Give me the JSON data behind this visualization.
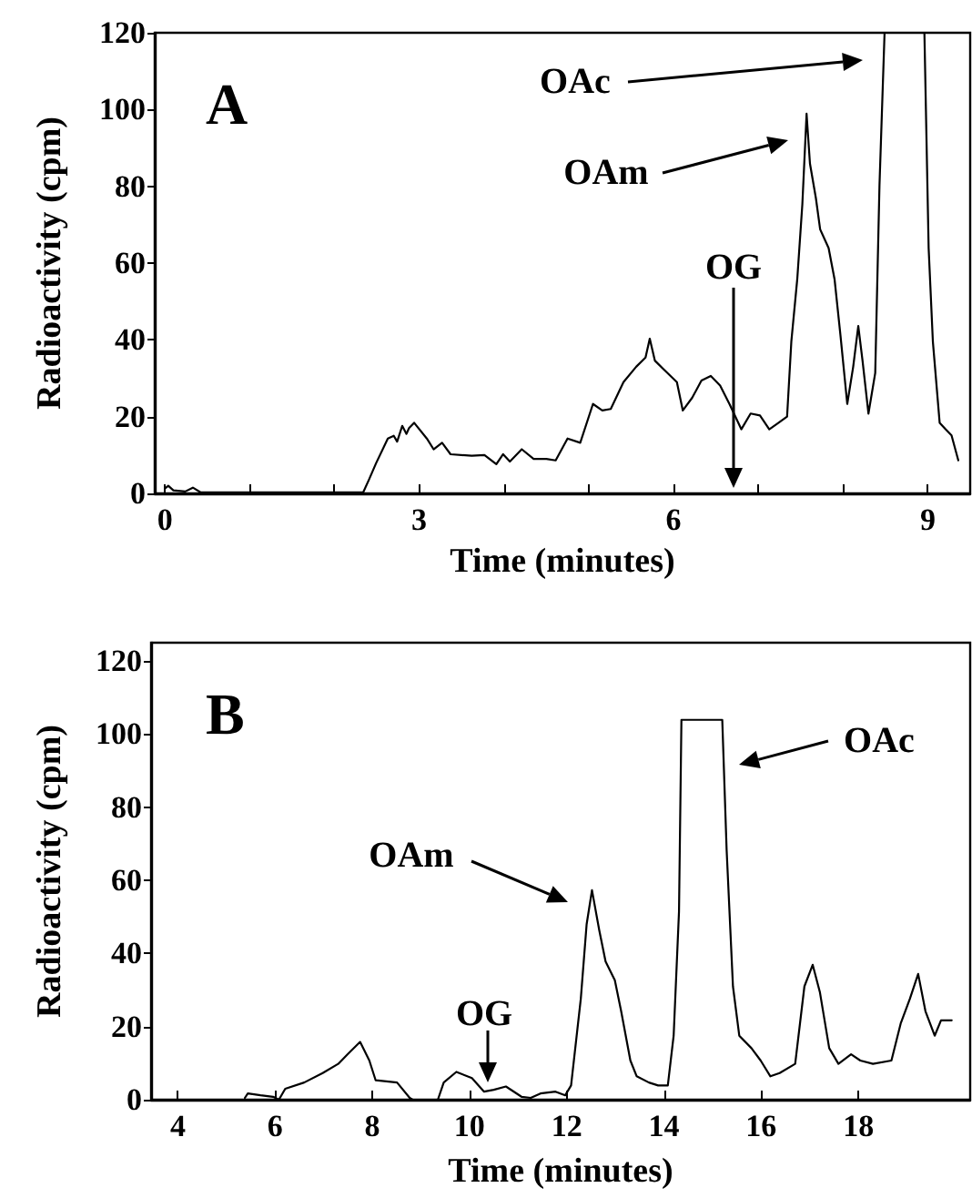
{
  "chart_data": [
    {
      "type": "line",
      "xlabel": "Time (minutes)",
      "ylabel": "Radioactivity (cpm)",
      "xlim": [
        -0.12,
        9.5
      ],
      "ylim": [
        0,
        120
      ],
      "xticks": [
        0,
        {
          "value": 1,
          "label": null
        },
        {
          "value": 2,
          "label": null
        },
        3,
        {
          "value": 4,
          "label": null
        },
        {
          "value": 5,
          "label": null
        },
        6,
        {
          "value": 7,
          "label": null
        },
        {
          "value": 8,
          "label": null
        },
        9
      ],
      "yticks": [
        0,
        20,
        40,
        60,
        80,
        100,
        120
      ],
      "grid": false,
      "marker": "none",
      "line_style": "solid",
      "annotations": [
        "A",
        "OAc",
        "OAm",
        "OG"
      ],
      "series": [
        {
          "color": "#000000",
          "x": [
            0,
            0.04,
            0.1,
            0.24,
            0.33,
            0.42,
            1,
            2,
            2.34,
            2.41,
            2.49,
            2.63,
            2.7,
            2.74,
            2.8,
            2.85,
            2.88,
            2.94,
            3.09,
            3.17,
            3.27,
            3.37,
            3.62,
            3.77,
            3.91,
            3.99,
            4.07,
            4.21,
            4.35,
            4.5,
            4.61,
            4.75,
            4.9,
            5.05,
            5.16,
            5.26,
            5.41,
            5.56,
            5.67,
            5.72,
            5.78,
            5.89,
            6.04,
            6.11,
            6.22,
            6.33,
            6.44,
            6.55,
            6.66,
            6.8,
            6.91,
            7.02,
            7.13,
            7.24,
            7.34,
            7.39,
            7.46,
            7.52,
            7.57,
            7.61,
            7.68,
            7.73,
            7.83,
            7.9,
            7.97,
            8.05,
            8.12,
            8.18,
            8.23,
            8.3,
            8.38,
            8.43,
            8.49,
            8.7,
            8.96,
            9.01,
            9.06,
            9.14,
            9.21,
            9.28,
            9.36
          ],
          "values": [
            1.3,
            2,
            0.8,
            0.5,
            1.5,
            0.3,
            0.3,
            0.3,
            0.3,
            3.7,
            7.8,
            14.3,
            15,
            13.5,
            17.6,
            15.5,
            17,
            18.4,
            14.3,
            11.5,
            13.2,
            10.2,
            9.8,
            10,
            7.6,
            10.2,
            8.3,
            11.5,
            9,
            9,
            8.6,
            14.3,
            13.2,
            23.3,
            21.6,
            22,
            29,
            33,
            35.4,
            40.3,
            34.6,
            32.2,
            29,
            21.6,
            24.9,
            29.4,
            30.6,
            28.1,
            23.3,
            16.7,
            20.8,
            20.3,
            16.7,
            18.4,
            20,
            39.5,
            55.8,
            75.3,
            98.9,
            85.9,
            76.9,
            68.8,
            63.9,
            55.8,
            41.1,
            23.3,
            33,
            43.6,
            34.6,
            20.8,
            31.4,
            80.2,
            120,
            null,
            120,
            63.9,
            39.5,
            18.4,
            16.7,
            15.1,
            8.6
          ]
        }
      ]
    },
    {
      "type": "line",
      "xlabel": "Time (minutes)",
      "ylabel": "Radioactivity (cpm)",
      "xlim": [
        3.45,
        20.3
      ],
      "ylim": [
        0,
        125
      ],
      "xticks": [
        4,
        6,
        8,
        10,
        12,
        14,
        16,
        18
      ],
      "yticks": [
        0,
        20,
        40,
        60,
        80,
        100,
        120
      ],
      "grid": false,
      "marker": "none",
      "line_style": "solid",
      "annotations": [
        "B",
        "OAc",
        "OAm",
        "OG"
      ],
      "series": [
        {
          "color": "#000000",
          "x": [
            5.38,
            5.44,
            5.7,
            5.96,
            6.08,
            6.21,
            6.6,
            6.98,
            7.3,
            7.49,
            7.75,
            7.94,
            8.07,
            8.51,
            8.77,
            8.83,
            9.35,
            9.47,
            9.73,
            10.05,
            10.3,
            10.5,
            10.75,
            11.07,
            11.26,
            11.46,
            11.77,
            11.97,
            12.09,
            12.29,
            12.41,
            12.52,
            12.67,
            12.8,
            12.99,
            13.12,
            13.31,
            13.44,
            13.69,
            13.88,
            14.08,
            14.2,
            14.31,
            14.36,
            15.2,
            15.29,
            15.42,
            15.55,
            15.8,
            15.99,
            16.19,
            16.38,
            16.7,
            16.89,
            17.06,
            17.21,
            17.4,
            17.59,
            17.85,
            18.04,
            18.3,
            18.68,
            18.87,
            19.06,
            19.23,
            19.38,
            19.57,
            19.7,
            19.92
          ],
          "values": [
            0.5,
            1.7,
            1.2,
            0.8,
            0,
            3,
            4.7,
            7.3,
            9.8,
            12.4,
            15.8,
            10.7,
            5.3,
            4.7,
            0.5,
            0,
            0,
            4.7,
            7.6,
            5.9,
            2.2,
            2.7,
            3.6,
            0.8,
            0.5,
            1.7,
            2.2,
            1.2,
            3.9,
            27.6,
            48,
            57.3,
            46.3,
            37.8,
            32.7,
            24.2,
            10.7,
            6.4,
            4.7,
            3.9,
            3.9,
            17.5,
            51.4,
            103.9,
            103.9,
            68.3,
            31,
            17.5,
            14.1,
            10.7,
            6.4,
            7.3,
            9.8,
            31,
            36.9,
            29.3,
            14.1,
            9.8,
            12.4,
            10.7,
            9.8,
            10.7,
            20.8,
            27.6,
            34.4,
            24.2,
            17.5,
            21.7,
            21.7
          ]
        }
      ]
    }
  ]
}
